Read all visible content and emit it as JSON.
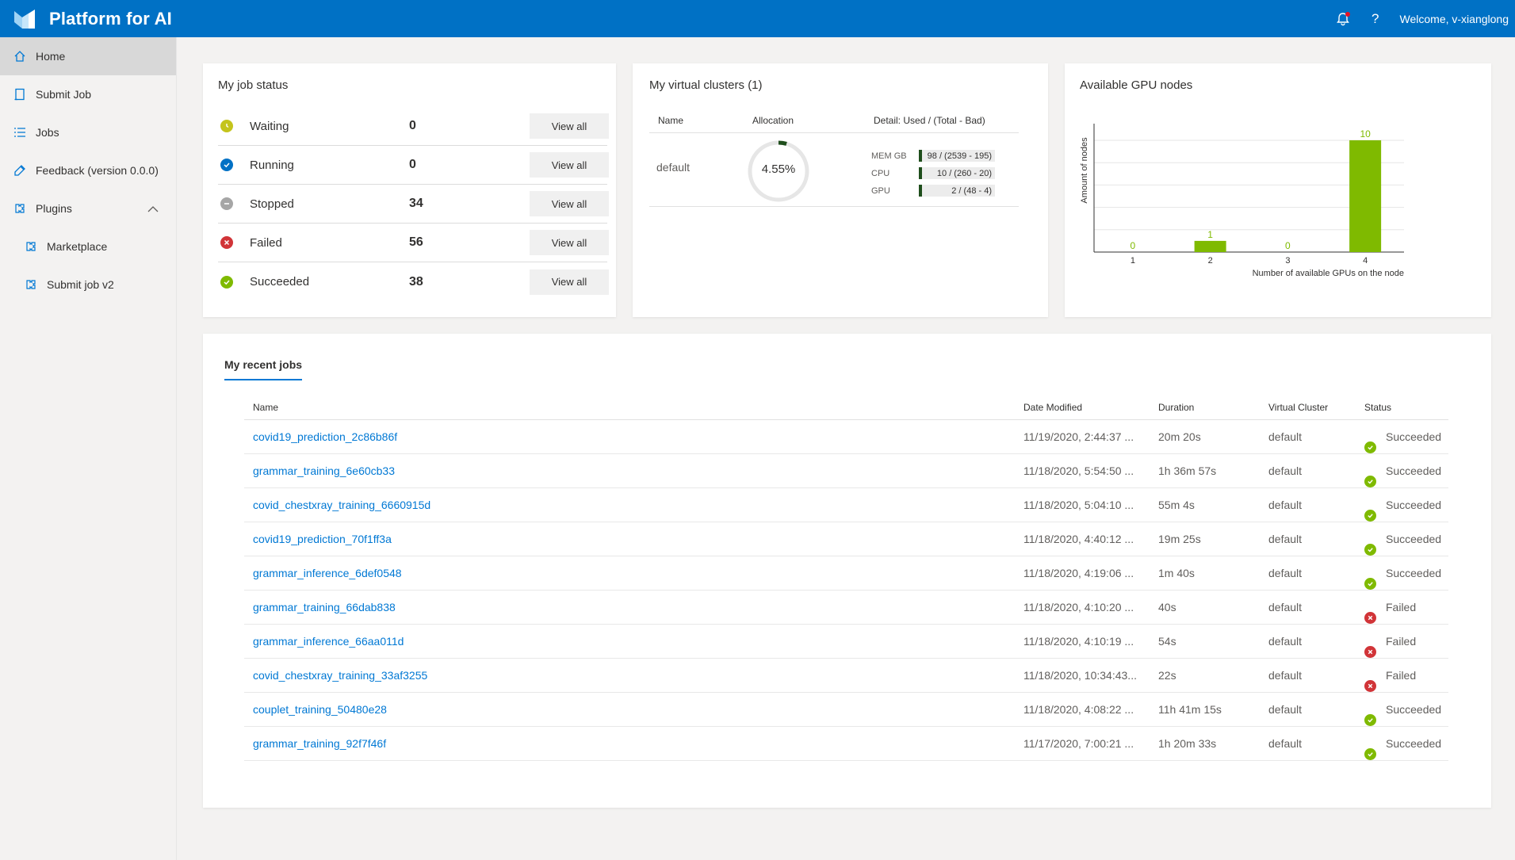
{
  "app": {
    "title": "Platform for AI",
    "welcome": "Welcome, v-xianglong",
    "help_label": "?"
  },
  "sidebar": {
    "items": [
      {
        "label": "Home",
        "icon": "home-icon"
      },
      {
        "label": "Submit Job",
        "icon": "submit-job-icon"
      },
      {
        "label": "Jobs",
        "icon": "list-icon"
      },
      {
        "label": "Feedback (version 0.0.0)",
        "icon": "feedback-icon"
      },
      {
        "label": "Plugins",
        "icon": "plugin-icon"
      },
      {
        "label": "Marketplace",
        "icon": "plugin-icon"
      },
      {
        "label": "Submit job v2",
        "icon": "plugin-icon"
      }
    ]
  },
  "job_status": {
    "title": "My job status",
    "view_all_label": "View all",
    "rows": [
      {
        "label": "Waiting",
        "count": "0",
        "color": "#c4c41c",
        "icon": "clock-icon"
      },
      {
        "label": "Running",
        "count": "0",
        "color": "#0071c5",
        "icon": "running-icon"
      },
      {
        "label": "Stopped",
        "count": "34",
        "color": "#a6a6a6",
        "icon": "stopped-icon"
      },
      {
        "label": "Failed",
        "count": "56",
        "color": "#d13438",
        "icon": "failed-icon"
      },
      {
        "label": "Succeeded",
        "count": "38",
        "color": "#7fba00",
        "icon": "succeeded-icon"
      }
    ]
  },
  "virtual_clusters": {
    "title": "My virtual clusters (1)",
    "headers": {
      "name": "Name",
      "allocation": "Allocation",
      "detail": "Detail: Used / (Total - Bad)"
    },
    "cluster": {
      "name": "default",
      "allocation": "4.55%",
      "allocation_fraction": 0.0455,
      "resources": [
        {
          "name": "MEM GB",
          "text": "98 / (2539 - 195)",
          "fraction": 0.042
        },
        {
          "name": "CPU",
          "text": "10 / (260 - 20)",
          "fraction": 0.042
        },
        {
          "name": "GPU",
          "text": "2 / (48 - 4)",
          "fraction": 0.045
        }
      ]
    }
  },
  "gpu_nodes": {
    "title": "Available GPU nodes",
    "chart_data": {
      "type": "bar",
      "categories": [
        "1",
        "2",
        "3",
        "4"
      ],
      "values": [
        0,
        1,
        0,
        10
      ],
      "xlabel": "Number of available GPUs on the node",
      "ylabel": "Amount of nodes",
      "ylim": [
        0,
        10
      ],
      "color": "#7fba00"
    }
  },
  "recent_jobs": {
    "tab_label": "My recent jobs",
    "headers": {
      "name": "Name",
      "date": "Date Modified",
      "duration": "Duration",
      "vc": "Virtual Cluster",
      "status": "Status"
    },
    "rows": [
      {
        "name": "covid19_prediction_2c86b86f",
        "date": "11/19/2020, 2:44:37 ...",
        "duration": "20m 20s",
        "vc": "default",
        "status": "Succeeded"
      },
      {
        "name": "grammar_training_6e60cb33",
        "date": "11/18/2020, 5:54:50 ...",
        "duration": "1h 36m 57s",
        "vc": "default",
        "status": "Succeeded"
      },
      {
        "name": "covid_chestxray_training_6660915d",
        "date": "11/18/2020, 5:04:10 ...",
        "duration": "55m 4s",
        "vc": "default",
        "status": "Succeeded"
      },
      {
        "name": "covid19_prediction_70f1ff3a",
        "date": "11/18/2020, 4:40:12 ...",
        "duration": "19m 25s",
        "vc": "default",
        "status": "Succeeded"
      },
      {
        "name": "grammar_inference_6def0548",
        "date": "11/18/2020, 4:19:06 ...",
        "duration": "1m 40s",
        "vc": "default",
        "status": "Succeeded"
      },
      {
        "name": "grammar_training_66dab838",
        "date": "11/18/2020, 4:10:20 ...",
        "duration": "40s",
        "vc": "default",
        "status": "Failed"
      },
      {
        "name": "grammar_inference_66aa011d",
        "date": "11/18/2020, 4:10:19 ...",
        "duration": "54s",
        "vc": "default",
        "status": "Failed"
      },
      {
        "name": "covid_chestxray_training_33af3255",
        "date": "11/18/2020, 10:34:43...",
        "duration": "22s",
        "vc": "default",
        "status": "Failed"
      },
      {
        "name": "couplet_training_50480e28",
        "date": "11/18/2020, 4:08:22 ...",
        "duration": "11h 41m 15s",
        "vc": "default",
        "status": "Succeeded"
      },
      {
        "name": "grammar_training_92f7f46f",
        "date": "11/17/2020, 7:00:21 ...",
        "duration": "1h 20m 33s",
        "vc": "default",
        "status": "Succeeded"
      }
    ]
  },
  "colors": {
    "brand": "#0071c5",
    "link": "#0078d4",
    "success": "#7fba00",
    "failure": "#d13438"
  }
}
